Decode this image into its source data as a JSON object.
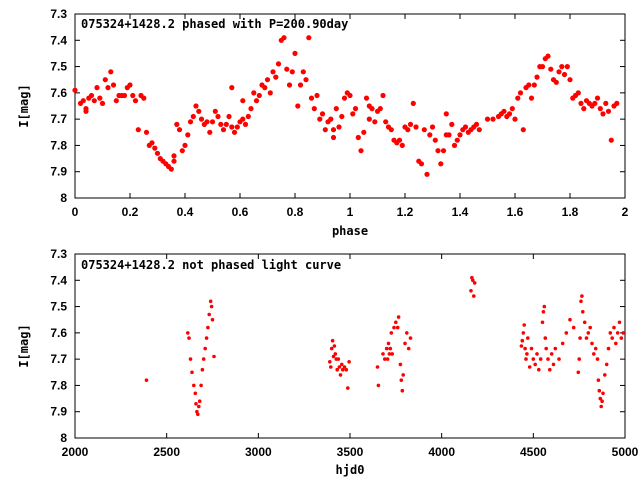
{
  "chart_data": [
    {
      "type": "scatter",
      "title": "075324+1428.2 phased with P=200.90day",
      "xlabel": "phase",
      "ylabel": "I[mag]",
      "xlim": [
        0,
        2
      ],
      "ylim": [
        7.3,
        8.0
      ],
      "y_inverted": true,
      "grid": false,
      "marker_color": "#ff0000",
      "xticks": [
        "0",
        "0.2",
        "0.4",
        "0.6",
        "0.8",
        "1",
        "1.2",
        "1.4",
        "1.6",
        "1.8",
        "2"
      ],
      "yticks": [
        "7.3",
        "7.4",
        "7.5",
        "7.6",
        "7.7",
        "7.8",
        "7.9",
        "8"
      ],
      "points": [
        [
          0.0,
          7.59
        ],
        [
          0.02,
          7.64
        ],
        [
          0.03,
          7.63
        ],
        [
          0.04,
          7.67
        ],
        [
          0.05,
          7.62
        ],
        [
          0.06,
          7.61
        ],
        [
          0.07,
          7.63
        ],
        [
          0.08,
          7.58
        ],
        [
          0.09,
          7.62
        ],
        [
          0.1,
          7.64
        ],
        [
          0.11,
          7.55
        ],
        [
          0.12,
          7.58
        ],
        [
          0.13,
          7.52
        ],
        [
          0.14,
          7.57
        ],
        [
          0.15,
          7.63
        ],
        [
          0.16,
          7.61
        ],
        [
          0.17,
          7.61
        ],
        [
          0.18,
          7.61
        ],
        [
          0.19,
          7.58
        ],
        [
          0.2,
          7.57
        ],
        [
          0.21,
          7.61
        ],
        [
          0.22,
          7.63
        ],
        [
          0.23,
          7.74
        ],
        [
          0.24,
          7.61
        ],
        [
          0.25,
          7.62
        ],
        [
          0.26,
          7.75
        ],
        [
          0.27,
          7.8
        ],
        [
          0.28,
          7.79
        ],
        [
          0.29,
          7.81
        ],
        [
          0.3,
          7.83
        ],
        [
          0.31,
          7.85
        ],
        [
          0.32,
          7.86
        ],
        [
          0.33,
          7.87
        ],
        [
          0.34,
          7.88
        ],
        [
          0.35,
          7.89
        ],
        [
          0.36,
          7.84
        ],
        [
          0.37,
          7.72
        ],
        [
          0.38,
          7.74
        ],
        [
          0.39,
          7.82
        ],
        [
          0.4,
          7.8
        ],
        [
          0.41,
          7.76
        ],
        [
          0.42,
          7.71
        ],
        [
          0.43,
          7.69
        ],
        [
          0.44,
          7.65
        ],
        [
          0.45,
          7.67
        ],
        [
          0.46,
          7.7
        ],
        [
          0.47,
          7.72
        ],
        [
          0.48,
          7.71
        ],
        [
          0.49,
          7.75
        ],
        [
          0.5,
          7.71
        ],
        [
          0.51,
          7.67
        ],
        [
          0.52,
          7.69
        ],
        [
          0.53,
          7.72
        ],
        [
          0.54,
          7.74
        ],
        [
          0.55,
          7.72
        ],
        [
          0.56,
          7.69
        ],
        [
          0.57,
          7.73
        ],
        [
          0.58,
          7.75
        ],
        [
          0.59,
          7.73
        ],
        [
          0.6,
          7.71
        ],
        [
          0.61,
          7.7
        ],
        [
          0.62,
          7.72
        ],
        [
          0.63,
          7.69
        ],
        [
          0.64,
          7.66
        ],
        [
          0.65,
          7.6
        ],
        [
          0.66,
          7.63
        ],
        [
          0.67,
          7.61
        ],
        [
          0.68,
          7.57
        ],
        [
          0.69,
          7.58
        ],
        [
          0.7,
          7.55
        ],
        [
          0.71,
          7.6
        ],
        [
          0.72,
          7.52
        ],
        [
          0.73,
          7.54
        ],
        [
          0.74,
          7.49
        ],
        [
          0.75,
          7.4
        ],
        [
          0.76,
          7.39
        ],
        [
          0.77,
          7.51
        ],
        [
          0.78,
          7.57
        ],
        [
          0.79,
          7.52
        ],
        [
          0.8,
          7.45
        ],
        [
          0.81,
          7.65
        ],
        [
          0.82,
          7.57
        ],
        [
          0.83,
          7.52
        ],
        [
          0.84,
          7.55
        ],
        [
          0.85,
          7.39
        ],
        [
          0.86,
          7.62
        ],
        [
          0.87,
          7.66
        ],
        [
          0.88,
          7.61
        ],
        [
          0.89,
          7.7
        ],
        [
          0.9,
          7.68
        ],
        [
          0.91,
          7.74
        ],
        [
          0.92,
          7.71
        ],
        [
          0.93,
          7.7
        ],
        [
          0.94,
          7.74
        ],
        [
          0.95,
          7.66
        ],
        [
          0.96,
          7.73
        ],
        [
          0.97,
          7.69
        ],
        [
          0.98,
          7.62
        ],
        [
          0.99,
          7.6
        ],
        [
          1.0,
          7.61
        ],
        [
          1.01,
          7.68
        ],
        [
          1.02,
          7.66
        ],
        [
          1.03,
          7.77
        ],
        [
          1.04,
          7.82
        ],
        [
          1.05,
          7.75
        ],
        [
          1.06,
          7.62
        ],
        [
          1.07,
          7.65
        ],
        [
          1.08,
          7.66
        ],
        [
          1.09,
          7.71
        ],
        [
          1.1,
          7.67
        ],
        [
          1.11,
          7.66
        ],
        [
          1.12,
          7.61
        ],
        [
          1.13,
          7.71
        ],
        [
          1.14,
          7.73
        ],
        [
          1.15,
          7.74
        ],
        [
          1.16,
          7.78
        ],
        [
          1.17,
          7.79
        ],
        [
          1.18,
          7.78
        ],
        [
          1.19,
          7.8
        ],
        [
          1.2,
          7.73
        ],
        [
          1.21,
          7.74
        ],
        [
          1.22,
          7.72
        ],
        [
          1.23,
          7.64
        ],
        [
          1.24,
          7.73
        ],
        [
          1.25,
          7.86
        ],
        [
          1.26,
          7.87
        ],
        [
          1.27,
          7.74
        ],
        [
          1.28,
          7.91
        ],
        [
          1.29,
          7.76
        ],
        [
          1.3,
          7.73
        ],
        [
          1.31,
          7.78
        ],
        [
          1.32,
          7.82
        ],
        [
          1.33,
          7.87
        ],
        [
          1.34,
          7.82
        ],
        [
          1.35,
          7.76
        ],
        [
          1.36,
          7.76
        ],
        [
          1.37,
          7.72
        ],
        [
          1.38,
          7.8
        ],
        [
          1.39,
          7.78
        ],
        [
          1.4,
          7.76
        ],
        [
          1.41,
          7.74
        ],
        [
          1.42,
          7.73
        ],
        [
          1.43,
          7.75
        ],
        [
          1.44,
          7.74
        ],
        [
          1.45,
          7.73
        ],
        [
          1.46,
          7.72
        ],
        [
          1.47,
          7.74
        ],
        [
          1.5,
          7.7
        ],
        [
          1.52,
          7.7
        ],
        [
          1.54,
          7.69
        ],
        [
          1.55,
          7.68
        ],
        [
          1.56,
          7.67
        ],
        [
          1.57,
          7.69
        ],
        [
          1.58,
          7.68
        ],
        [
          1.59,
          7.66
        ],
        [
          1.6,
          7.7
        ],
        [
          1.61,
          7.62
        ],
        [
          1.62,
          7.6
        ],
        [
          1.63,
          7.74
        ],
        [
          1.64,
          7.58
        ],
        [
          1.65,
          7.57
        ],
        [
          1.66,
          7.62
        ],
        [
          1.67,
          7.57
        ],
        [
          1.68,
          7.54
        ],
        [
          1.69,
          7.5
        ],
        [
          1.7,
          7.5
        ],
        [
          1.71,
          7.47
        ],
        [
          1.72,
          7.46
        ],
        [
          1.73,
          7.51
        ],
        [
          1.74,
          7.55
        ],
        [
          1.75,
          7.56
        ],
        [
          1.76,
          7.52
        ],
        [
          1.77,
          7.5
        ],
        [
          1.78,
          7.53
        ],
        [
          1.79,
          7.5
        ],
        [
          1.8,
          7.55
        ],
        [
          1.81,
          7.62
        ],
        [
          1.82,
          7.61
        ],
        [
          1.83,
          7.6
        ],
        [
          1.84,
          7.64
        ],
        [
          1.85,
          7.66
        ],
        [
          1.86,
          7.63
        ],
        [
          1.87,
          7.64
        ],
        [
          1.88,
          7.65
        ],
        [
          1.89,
          7.64
        ],
        [
          1.9,
          7.62
        ],
        [
          1.91,
          7.66
        ],
        [
          1.92,
          7.68
        ],
        [
          1.93,
          7.64
        ],
        [
          1.94,
          7.67
        ],
        [
          1.95,
          7.78
        ],
        [
          1.96,
          7.65
        ],
        [
          1.97,
          7.64
        ],
        [
          0.57,
          7.58
        ],
        [
          0.61,
          7.63
        ],
        [
          0.36,
          7.86
        ],
        [
          0.04,
          7.66
        ],
        [
          1.35,
          7.68
        ],
        [
          1.07,
          7.7
        ],
        [
          0.94,
          7.77
        ]
      ]
    },
    {
      "type": "scatter",
      "title": "075324+1428.2 not phased light curve",
      "xlabel": "hjd0",
      "ylabel": "I[mag]",
      "xlim": [
        2000,
        5000
      ],
      "ylim": [
        7.3,
        8.0
      ],
      "y_inverted": true,
      "grid": false,
      "marker_color": "#ff0000",
      "xticks": [
        "2000",
        "2500",
        "3000",
        "3500",
        "4000",
        "4500",
        "5000"
      ],
      "yticks": [
        "7.3",
        "7.4",
        "7.5",
        "7.6",
        "7.7",
        "7.8",
        "7.9",
        "8"
      ],
      "points": [
        [
          2390,
          7.78
        ],
        [
          2615,
          7.6
        ],
        [
          2622,
          7.62
        ],
        [
          2630,
          7.7
        ],
        [
          2638,
          7.75
        ],
        [
          2648,
          7.8
        ],
        [
          2656,
          7.83
        ],
        [
          2660,
          7.87
        ],
        [
          2665,
          7.9
        ],
        [
          2670,
          7.91
        ],
        [
          2675,
          7.88
        ],
        [
          2680,
          7.86
        ],
        [
          2688,
          7.8
        ],
        [
          2695,
          7.74
        ],
        [
          2702,
          7.7
        ],
        [
          2710,
          7.66
        ],
        [
          2718,
          7.62
        ],
        [
          2725,
          7.58
        ],
        [
          2732,
          7.53
        ],
        [
          2740,
          7.48
        ],
        [
          2745,
          7.5
        ],
        [
          2750,
          7.55
        ],
        [
          2758,
          7.69
        ],
        [
          3390,
          7.71
        ],
        [
          3395,
          7.73
        ],
        [
          3400,
          7.66
        ],
        [
          3405,
          7.63
        ],
        [
          3410,
          7.69
        ],
        [
          3415,
          7.65
        ],
        [
          3420,
          7.68
        ],
        [
          3425,
          7.7
        ],
        [
          3430,
          7.74
        ],
        [
          3436,
          7.7
        ],
        [
          3442,
          7.73
        ],
        [
          3448,
          7.76
        ],
        [
          3455,
          7.72
        ],
        [
          3460,
          7.74
        ],
        [
          3470,
          7.73
        ],
        [
          3480,
          7.74
        ],
        [
          3488,
          7.81
        ],
        [
          3495,
          7.71
        ],
        [
          3650,
          7.73
        ],
        [
          3655,
          7.8
        ],
        [
          3680,
          7.68
        ],
        [
          3690,
          7.7
        ],
        [
          3700,
          7.66
        ],
        [
          3705,
          7.7
        ],
        [
          3710,
          7.64
        ],
        [
          3715,
          7.68
        ],
        [
          3720,
          7.66
        ],
        [
          3725,
          7.6
        ],
        [
          3730,
          7.68
        ],
        [
          3740,
          7.58
        ],
        [
          3750,
          7.56
        ],
        [
          3760,
          7.58
        ],
        [
          3765,
          7.54
        ],
        [
          3775,
          7.72
        ],
        [
          3780,
          7.78
        ],
        [
          3785,
          7.82
        ],
        [
          3790,
          7.76
        ],
        [
          3800,
          7.64
        ],
        [
          3810,
          7.6
        ],
        [
          3820,
          7.66
        ],
        [
          3830,
          7.62
        ],
        [
          4160,
          7.44
        ],
        [
          4165,
          7.39
        ],
        [
          4170,
          7.4
        ],
        [
          4175,
          7.46
        ],
        [
          4180,
          7.41
        ],
        [
          4435,
          7.65
        ],
        [
          4440,
          7.63
        ],
        [
          4445,
          7.6
        ],
        [
          4450,
          7.57
        ],
        [
          4455,
          7.66
        ],
        [
          4460,
          7.7
        ],
        [
          4465,
          7.68
        ],
        [
          4470,
          7.62
        ],
        [
          4480,
          7.73
        ],
        [
          4490,
          7.66
        ],
        [
          4500,
          7.7
        ],
        [
          4510,
          7.72
        ],
        [
          4520,
          7.68
        ],
        [
          4530,
          7.74
        ],
        [
          4540,
          7.7
        ],
        [
          4550,
          7.56
        ],
        [
          4555,
          7.52
        ],
        [
          4560,
          7.5
        ],
        [
          4565,
          7.62
        ],
        [
          4570,
          7.66
        ],
        [
          4580,
          7.7
        ],
        [
          4590,
          7.74
        ],
        [
          4600,
          7.68
        ],
        [
          4610,
          7.72
        ],
        [
          4620,
          7.66
        ],
        [
          4745,
          7.75
        ],
        [
          4750,
          7.7
        ],
        [
          4755,
          7.62
        ],
        [
          4760,
          7.48
        ],
        [
          4765,
          7.46
        ],
        [
          4770,
          7.52
        ],
        [
          4780,
          7.56
        ],
        [
          4790,
          7.62
        ],
        [
          4800,
          7.6
        ],
        [
          4810,
          7.58
        ],
        [
          4820,
          7.64
        ],
        [
          4830,
          7.68
        ],
        [
          4840,
          7.66
        ],
        [
          4850,
          7.7
        ],
        [
          4855,
          7.78
        ],
        [
          4860,
          7.82
        ],
        [
          4865,
          7.85
        ],
        [
          4870,
          7.88
        ],
        [
          4875,
          7.86
        ],
        [
          4880,
          7.83
        ],
        [
          4890,
          7.76
        ],
        [
          4900,
          7.72
        ],
        [
          4910,
          7.66
        ],
        [
          4920,
          7.6
        ],
        [
          4930,
          7.62
        ],
        [
          4940,
          7.58
        ],
        [
          4950,
          7.64
        ],
        [
          4960,
          7.6
        ],
        [
          4970,
          7.56
        ],
        [
          4980,
          7.62
        ],
        [
          4990,
          7.6
        ],
        [
          4720,
          7.58
        ],
        [
          4700,
          7.55
        ],
        [
          4680,
          7.6
        ],
        [
          4660,
          7.64
        ],
        [
          4640,
          7.7
        ]
      ]
    }
  ]
}
